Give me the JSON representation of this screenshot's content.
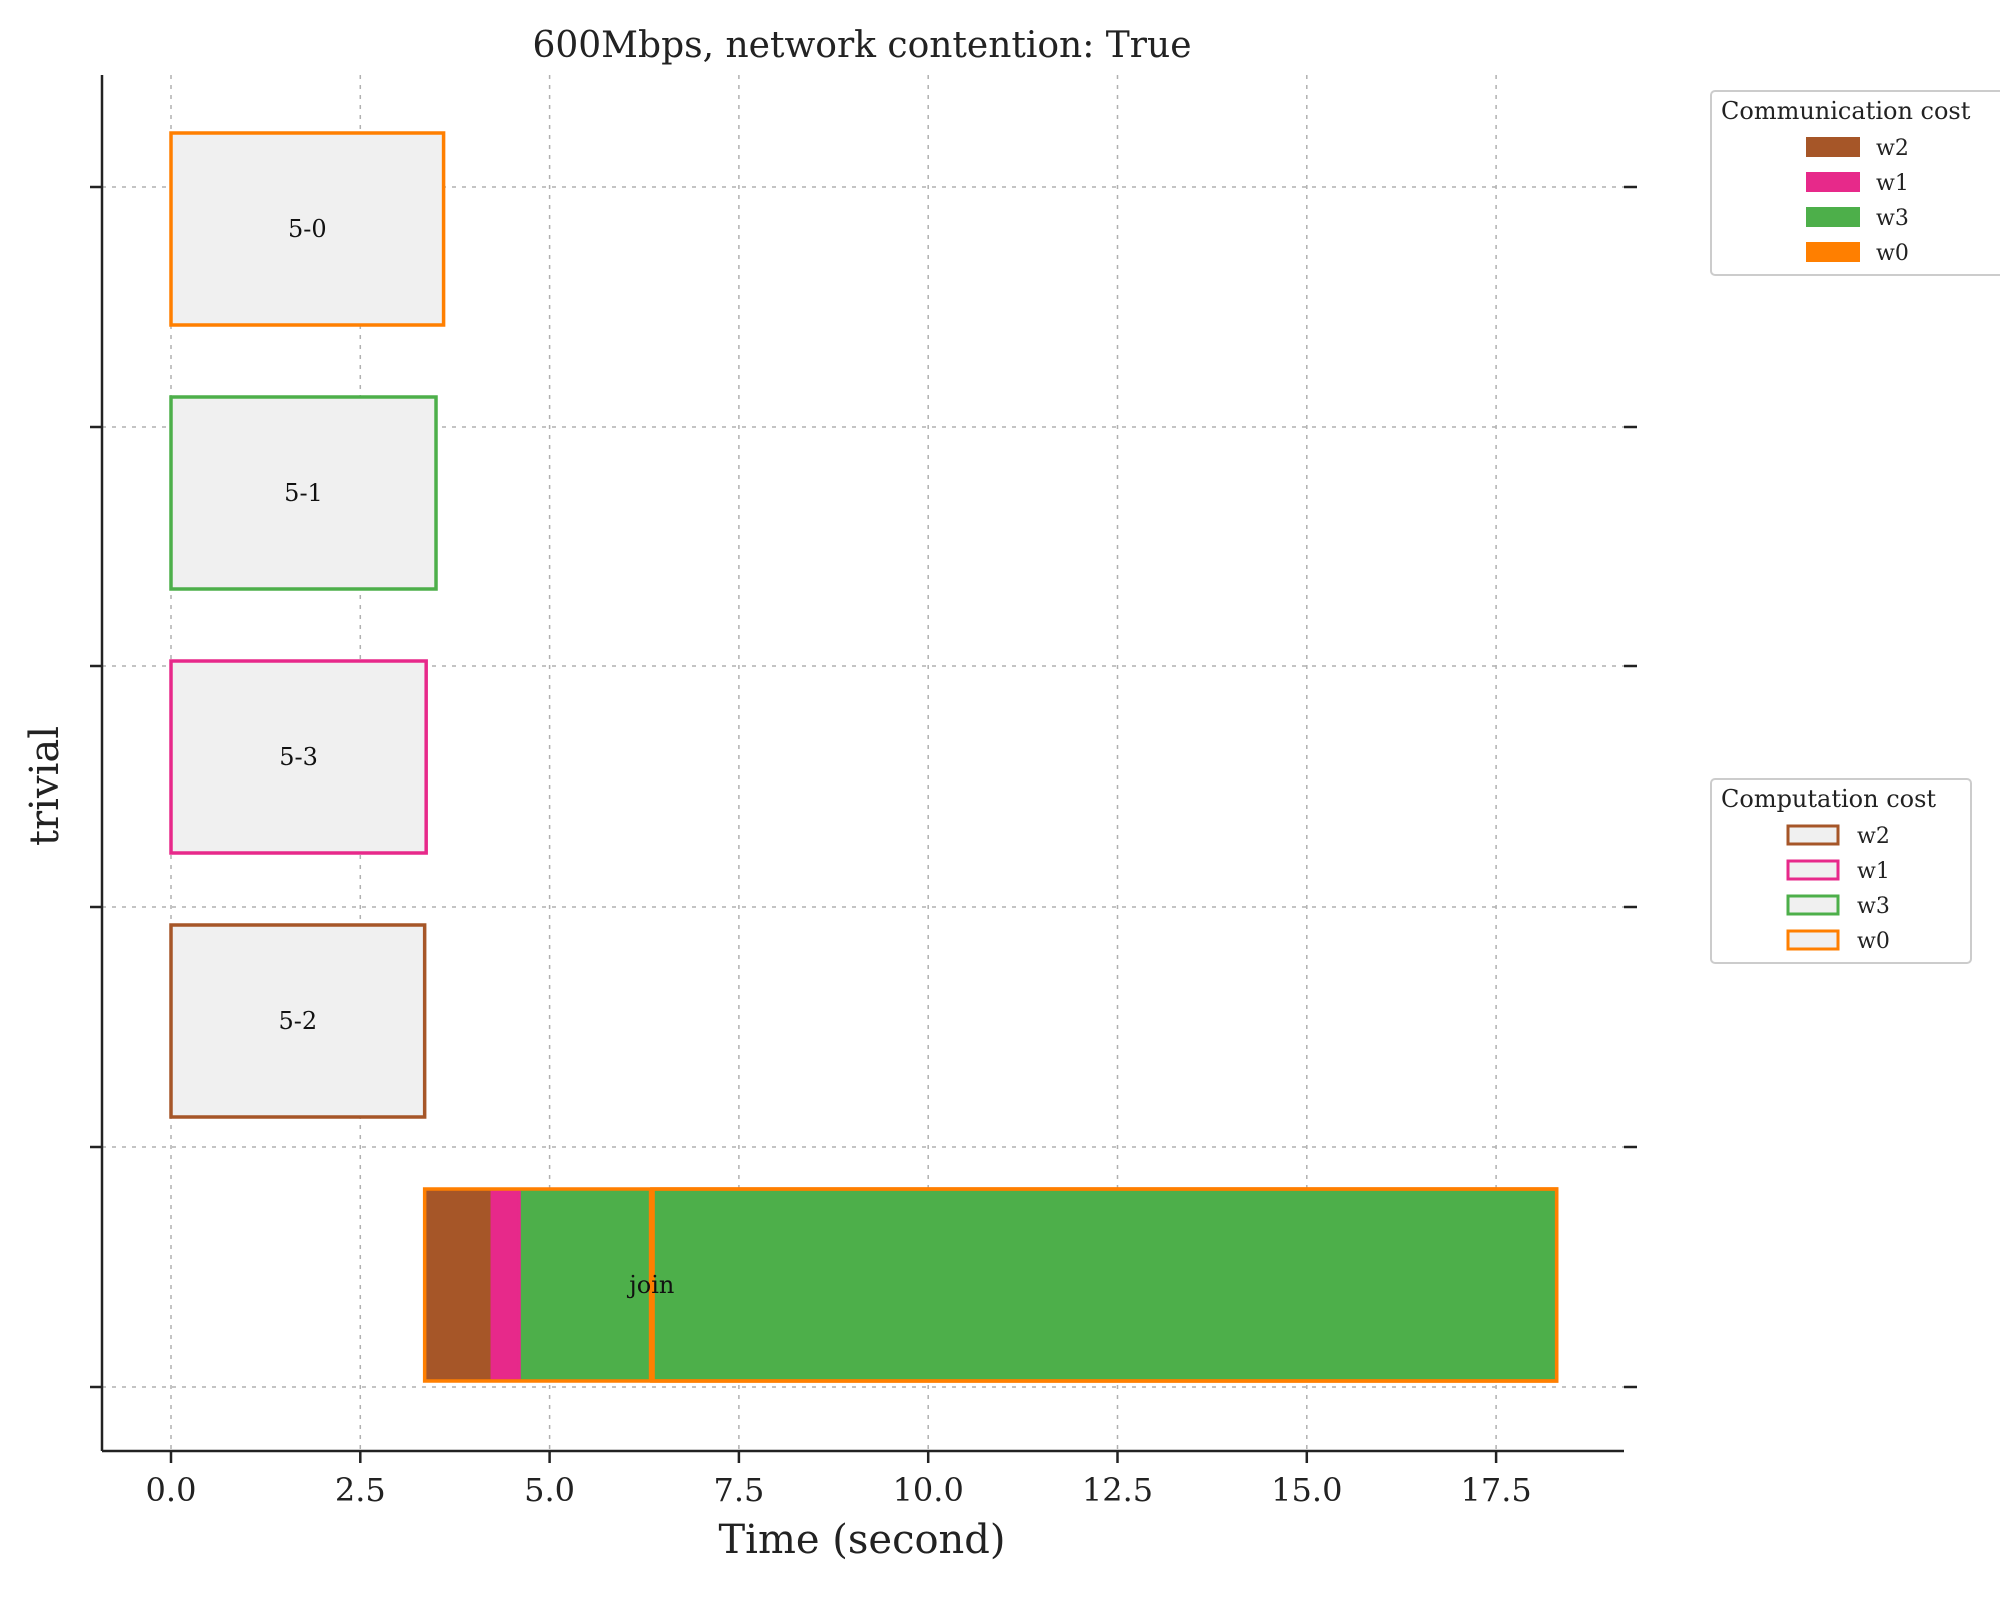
{
  "chart_data": {
    "type": "bar",
    "orientation": "horizontal",
    "title": "600Mbps, network contention: True",
    "xlabel": "Time (second)",
    "ylabel": "trivial",
    "xlim": [
      -0.9,
      19.2
    ],
    "xticks": [
      "0.0",
      "2.5",
      "5.0",
      "7.5",
      "10.0",
      "12.5",
      "15.0",
      "17.5"
    ],
    "grid": true,
    "colors": {
      "w2": "#a65628",
      "w1": "#e7298a",
      "w3": "#4daf4a",
      "w0": "#ff7f00"
    },
    "tasks": [
      {
        "label": "5-0",
        "row": 0,
        "worker": "w0",
        "segments": [
          {
            "kind": "computation",
            "worker": "w0",
            "start": 0.0,
            "end": 3.6
          }
        ]
      },
      {
        "label": "5-1",
        "row": 1,
        "worker": "w3",
        "segments": [
          {
            "kind": "computation",
            "worker": "w3",
            "start": 0.0,
            "end": 3.5
          }
        ]
      },
      {
        "label": "5-3",
        "row": 2,
        "worker": "w1",
        "segments": [
          {
            "kind": "computation",
            "worker": "w1",
            "start": 0.0,
            "end": 3.37
          }
        ]
      },
      {
        "label": "5-2",
        "row": 3,
        "worker": "w2",
        "segments": [
          {
            "kind": "computation",
            "worker": "w2",
            "start": 0.0,
            "end": 3.35
          }
        ]
      },
      {
        "label": "join",
        "row": 4,
        "worker": "w0",
        "segments": [
          {
            "kind": "communication",
            "worker": "w2",
            "start": 3.35,
            "end": 4.2
          },
          {
            "kind": "communication",
            "worker": "w1",
            "start": 4.2,
            "end": 4.6
          },
          {
            "kind": "communication",
            "worker": "w3",
            "start": 4.6,
            "end": 6.35
          },
          {
            "kind": "computation",
            "worker": "w0",
            "start": 6.35,
            "end": 18.3,
            "fill": "w3"
          }
        ]
      }
    ],
    "legends": [
      {
        "title": "Communication cost",
        "style": "filled",
        "entries": [
          "w2",
          "w1",
          "w3",
          "w0"
        ]
      },
      {
        "title": "Computation cost",
        "style": "outline",
        "entries": [
          "w2",
          "w1",
          "w3",
          "w0"
        ]
      }
    ]
  }
}
